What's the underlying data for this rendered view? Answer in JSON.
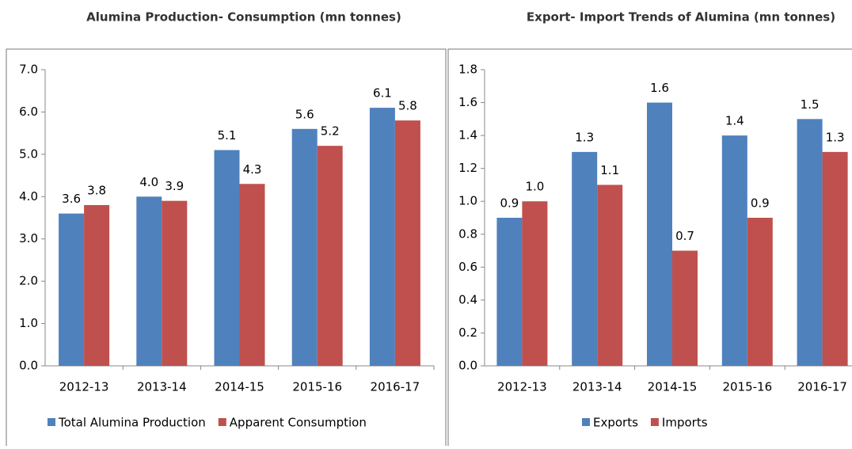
{
  "chart_data": [
    {
      "type": "bar",
      "title": "Alumina Production- Consumption (mn tonnes)",
      "categories": [
        "2012-13",
        "2013-14",
        "2014-15",
        "2015-16",
        "2016-17"
      ],
      "series": [
        {
          "name": "Total Alumina Production",
          "color": "#4f81bd",
          "values": [
            3.6,
            4.0,
            5.1,
            5.6,
            6.1
          ],
          "value_labels": [
            "3.6",
            "4.0",
            "5.1",
            "5.6",
            "6.1"
          ]
        },
        {
          "name": "Apparent Consumption",
          "color": "#c0504d",
          "values": [
            3.8,
            3.9,
            4.3,
            5.2,
            5.8
          ],
          "value_labels": [
            "3.8",
            "3.9",
            "4.3",
            "5.2",
            "5.8"
          ]
        }
      ],
      "ylim": [
        0,
        7
      ],
      "yticks": [
        {
          "value": 0,
          "label": "0.0"
        },
        {
          "value": 1,
          "label": "1.0"
        },
        {
          "value": 2,
          "label": "2.0"
        },
        {
          "value": 3,
          "label": "3.0"
        },
        {
          "value": 4,
          "label": "4.0"
        },
        {
          "value": 5,
          "label": "5.0"
        },
        {
          "value": 6,
          "label": "6.0"
        },
        {
          "value": 7,
          "label": "7.0"
        }
      ],
      "grid": false,
      "legend": "bottom"
    },
    {
      "type": "bar",
      "title": "Export- Import Trends of Alumina (mn tonnes)",
      "categories": [
        "2012-13",
        "2013-14",
        "2014-15",
        "2015-16",
        "2016-17"
      ],
      "series": [
        {
          "name": "Exports",
          "color": "#4f81bd",
          "values": [
            0.9,
            1.3,
            1.6,
            1.4,
            1.5
          ],
          "value_labels": [
            "0.9",
            "1.3",
            "1.6",
            "1.4",
            "1.5"
          ]
        },
        {
          "name": "Imports",
          "color": "#c0504d",
          "values": [
            1.0,
            1.1,
            0.7,
            0.9,
            1.3
          ],
          "value_labels": [
            "1.0",
            "1.1",
            "0.7",
            "0.9",
            "1.3"
          ]
        }
      ],
      "ylim": [
        0,
        1.8
      ],
      "yticks": [
        {
          "value": 0,
          "label": "0.0"
        },
        {
          "value": 0.2,
          "label": "0.2"
        },
        {
          "value": 0.4,
          "label": "0.4"
        },
        {
          "value": 0.6,
          "label": "0.6"
        },
        {
          "value": 0.8,
          "label": "0.8"
        },
        {
          "value": 1,
          "label": "1.0"
        },
        {
          "value": 1.2,
          "label": "1.2"
        },
        {
          "value": 1.4,
          "label": "1.4"
        },
        {
          "value": 1.6,
          "label": "1.6"
        },
        {
          "value": 1.8,
          "label": "1.8"
        }
      ],
      "grid": false,
      "legend": "bottom"
    }
  ]
}
